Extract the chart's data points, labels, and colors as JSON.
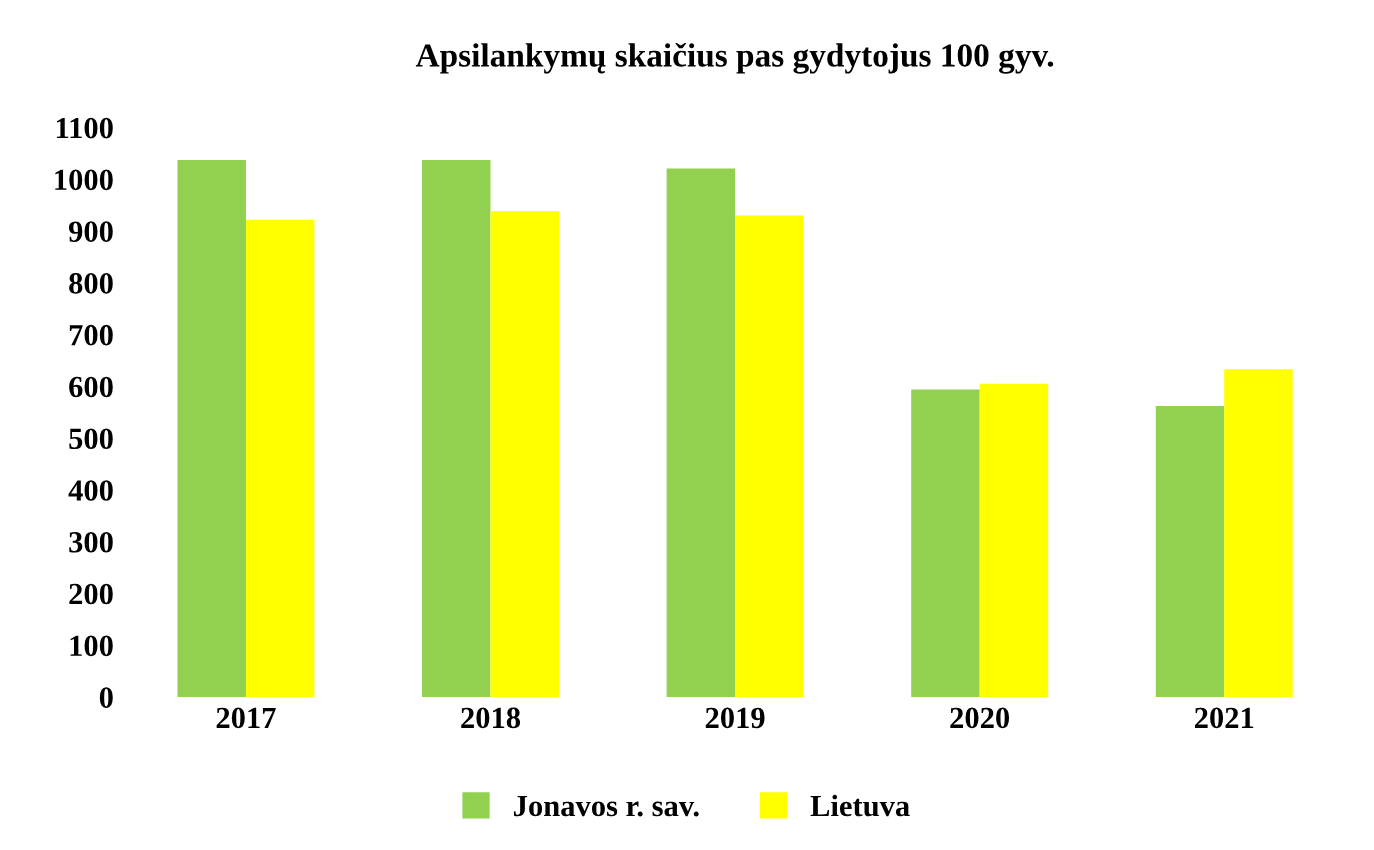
{
  "chart_data": {
    "type": "bar",
    "title": "Apsilankymų skaičius pas gydytojus 100 gyv.",
    "categories": [
      "2017",
      "2018",
      "2019",
      "2020",
      "2021"
    ],
    "series": [
      {
        "name": "Jonavos r. sav.",
        "color": "#92d050",
        "values": [
          1037,
          1037,
          1021,
          594,
          562
        ]
      },
      {
        "name": "Lietuva",
        "color": "#ffff00",
        "values": [
          922,
          938,
          930,
          605,
          633
        ]
      }
    ],
    "ylim": [
      0,
      1100
    ],
    "yticks": [
      0,
      100,
      200,
      300,
      400,
      500,
      600,
      700,
      800,
      900,
      1000,
      1100
    ],
    "grid": false,
    "legend": "bottom"
  }
}
